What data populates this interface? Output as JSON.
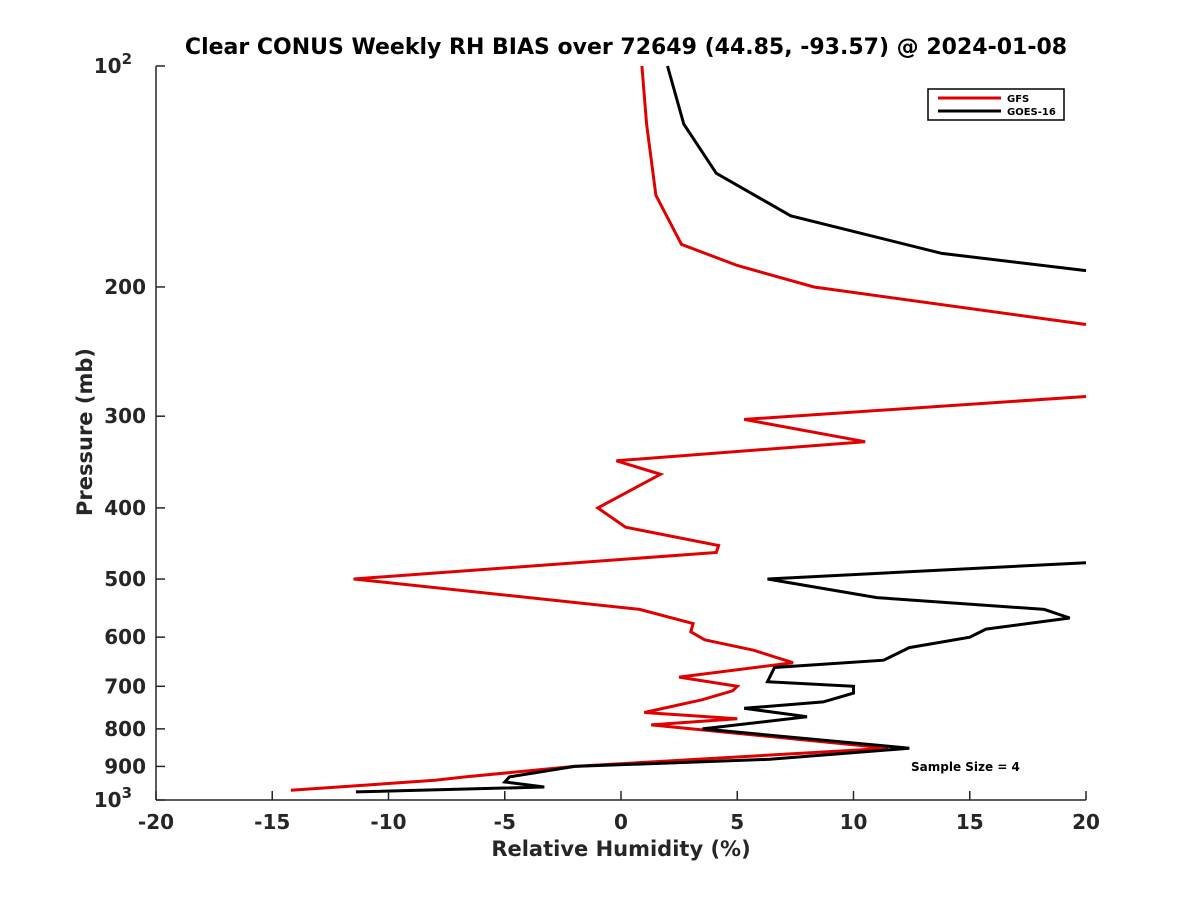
{
  "chart_data": {
    "type": "line",
    "title": "Clear CONUS Weekly RH BIAS over 72649 (44.85, -93.57) @ 2024-01-08",
    "xlabel": "Relative Humidity (%)",
    "ylabel": "Pressure (mb)",
    "xlim": [
      -20,
      20
    ],
    "ylim": [
      100,
      1000
    ],
    "yscale": "log",
    "y_reversed": true,
    "grid": false,
    "legend_position": "top-right",
    "x_ticks": [
      -20,
      -15,
      -10,
      -5,
      0,
      5,
      10,
      15,
      20
    ],
    "x_tick_labels": [
      "-20",
      "-15",
      "-10",
      "-5",
      "0",
      "5",
      "10",
      "15",
      "20"
    ],
    "y_ticks": [
      100,
      200,
      300,
      400,
      500,
      600,
      700,
      800,
      900,
      1000
    ],
    "y_tick_labels": [
      "10^2",
      "200",
      "300",
      "400",
      "500",
      "600",
      "700",
      "800",
      "900",
      "10^3"
    ],
    "annotation": "Sample Size = 4",
    "series": [
      {
        "name": "GFS",
        "color": "#e00000",
        "points": [
          [
            0.9,
            100
          ],
          [
            1.1,
            120
          ],
          [
            1.5,
            150
          ],
          [
            2.6,
            175
          ],
          [
            5.0,
            187
          ],
          [
            8.3,
            200
          ],
          [
            20.0,
            225
          ],
          [
            null,
            null
          ],
          [
            20.0,
            282
          ],
          [
            5.3,
            303
          ],
          [
            10.5,
            325
          ],
          [
            -0.2,
            345
          ],
          [
            1.7,
            360
          ],
          [
            -1.0,
            400
          ],
          [
            0.2,
            425
          ],
          [
            4.2,
            450
          ],
          [
            4.1,
            460
          ],
          [
            -11.5,
            500
          ],
          [
            0.8,
            550
          ],
          [
            3.1,
            575
          ],
          [
            3.0,
            590
          ],
          [
            3.6,
            605
          ],
          [
            5.7,
            625
          ],
          [
            7.4,
            650
          ],
          [
            2.5,
            680
          ],
          [
            5.0,
            700
          ],
          [
            4.8,
            710
          ],
          [
            3.5,
            730
          ],
          [
            1.0,
            760
          ],
          [
            5.0,
            775
          ],
          [
            1.3,
            790
          ],
          [
            11.5,
            850
          ],
          [
            -2.0,
            900
          ],
          [
            -6.7,
            930
          ],
          [
            -8.0,
            940
          ],
          [
            -14.2,
            970
          ]
        ]
      },
      {
        "name": "GOES-16",
        "color": "#000000",
        "points": [
          [
            2.0,
            100
          ],
          [
            2.7,
            120
          ],
          [
            4.1,
            140
          ],
          [
            7.3,
            160
          ],
          [
            13.8,
            180
          ],
          [
            20.0,
            190
          ],
          [
            null,
            null
          ],
          [
            20.0,
            475
          ],
          [
            6.3,
            500
          ],
          [
            11.0,
            530
          ],
          [
            18.2,
            550
          ],
          [
            19.3,
            565
          ],
          [
            15.7,
            585
          ],
          [
            15.0,
            600
          ],
          [
            12.4,
            620
          ],
          [
            11.3,
            645
          ],
          [
            6.6,
            660
          ],
          [
            6.3,
            690
          ],
          [
            10.0,
            700
          ],
          [
            10.0,
            715
          ],
          [
            8.7,
            735
          ],
          [
            5.3,
            750
          ],
          [
            8.0,
            770
          ],
          [
            3.5,
            800
          ],
          [
            12.4,
            850
          ],
          [
            6.4,
            880
          ],
          [
            -2.0,
            900
          ],
          [
            -4.8,
            930
          ],
          [
            -5.0,
            945
          ],
          [
            -3.3,
            960
          ],
          [
            -11.4,
            975
          ]
        ]
      }
    ]
  }
}
